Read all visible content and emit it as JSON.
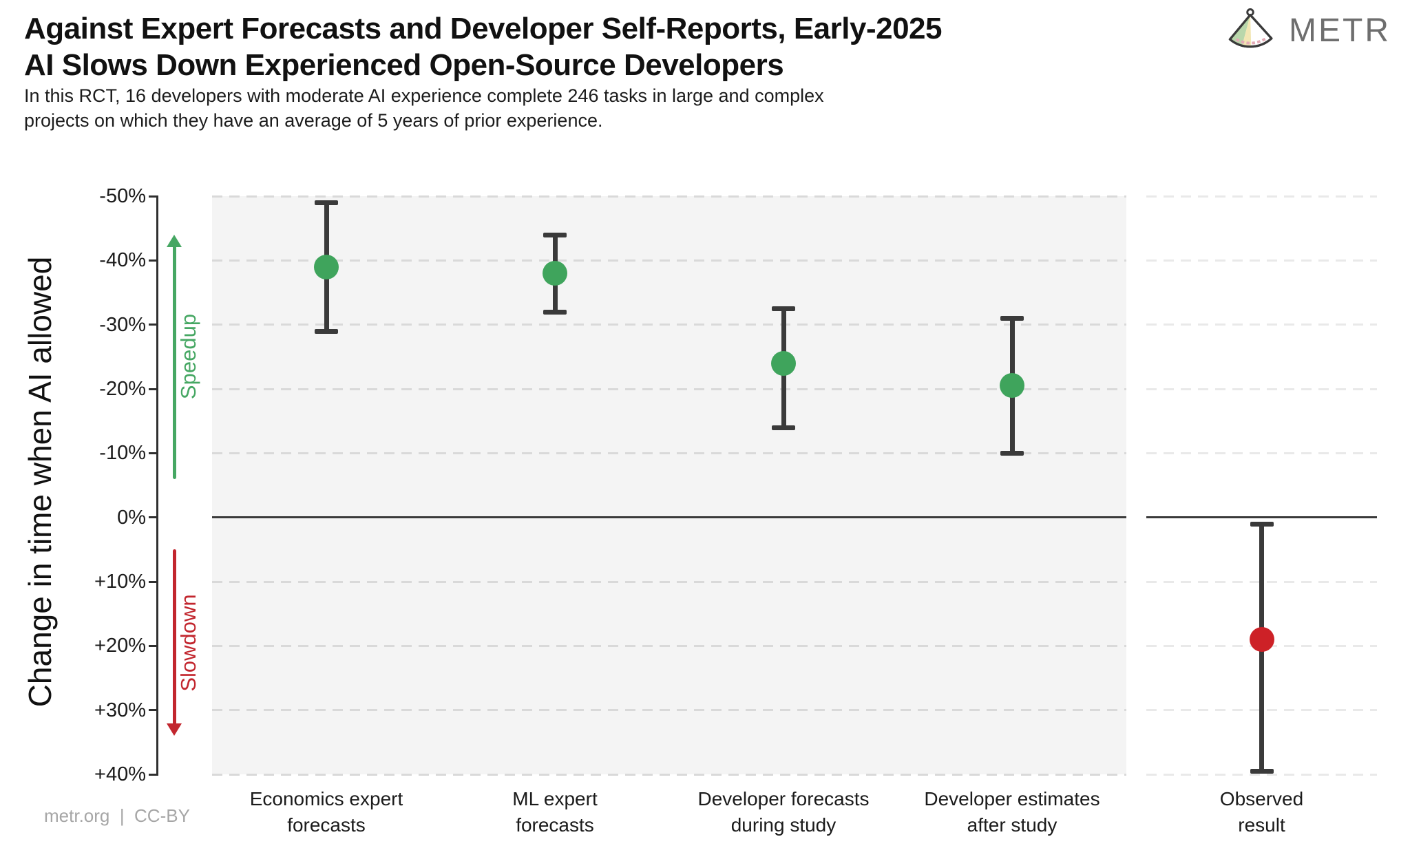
{
  "header": {
    "title_line1": "Against Expert Forecasts and Developer Self-Reports, Early-2025",
    "title_line2": "AI Slows Down Experienced Open-Source Developers",
    "subtitle_line1": "In this RCT, 16 developers with moderate AI experience complete 246 tasks in large and complex",
    "subtitle_line2": "projects on which they have an average of 5 years of prior experience.",
    "logo_text": "METR"
  },
  "footer": {
    "credit": "metr.org  |  CC-BY"
  },
  "colors": {
    "accent_green": "#3fa45c",
    "accent_red": "#cd2127",
    "speedup_green": "#46a763",
    "slowdown_red": "#c2262e",
    "panel_bg": "#f4f4f4",
    "observed_panel_bg": "#ffffff",
    "grid_main": "#d9d9d9",
    "grid_observed": "#e9e9e9",
    "axis": "#2f2f2f",
    "errorbar": "#3a3a3a",
    "zero_line": "#3a3a3a"
  },
  "chart_data": {
    "type": "scatter",
    "title": "Against Expert Forecasts and Developer Self-Reports, Early-2025 AI Slows Down Experienced Open-Source Developers",
    "subtitle": "In this RCT, 16 developers with moderate AI experience complete 246 tasks in large and complex projects on which they have an average of 5 years of prior experience.",
    "ylabel": "Change in time when AI allowed",
    "xlabel": "",
    "ylim": [
      -50,
      40
    ],
    "y_axis_inverted_note": "negative values (speedup) plotted at top, positive (slowdown) at bottom",
    "grid": "horizontal dashed lines every 10%",
    "legend": "none",
    "ytick_values": [
      -50,
      -40,
      -30,
      -20,
      -10,
      0,
      10,
      20,
      30,
      40
    ],
    "ytick_labels": [
      "-50%",
      "-40%",
      "-30%",
      "-20%",
      "-10%",
      "0%",
      "+10%",
      "+20%",
      "+30%",
      "+40%"
    ],
    "zero_reference_line": 0,
    "annotations": {
      "speedup": {
        "label": "Speedup",
        "direction": "up",
        "from": -6,
        "to": -44,
        "color": "#46a763"
      },
      "slowdown": {
        "label": "Slowdown",
        "direction": "down",
        "from": 5,
        "to": 34,
        "color": "#c2262e"
      }
    },
    "series": [
      {
        "category": "Economics expert\nforecasts",
        "value": -39,
        "ci": [
          -49,
          -29
        ],
        "color": "#3fa45c",
        "panel": "main"
      },
      {
        "category": "ML expert\nforecasts",
        "value": -38,
        "ci": [
          -44,
          -32
        ],
        "color": "#3fa45c",
        "panel": "main"
      },
      {
        "category": "Developer forecasts\nduring study",
        "value": -24,
        "ci": [
          -32.5,
          -14
        ],
        "color": "#3fa45c",
        "panel": "main"
      },
      {
        "category": "Developer estimates\nafter study",
        "value": -20.5,
        "ci": [
          -31,
          -10
        ],
        "color": "#3fa45c",
        "panel": "main"
      },
      {
        "category": "Observed\nresult",
        "value": 19,
        "ci": [
          1,
          39.5
        ],
        "color": "#cd2127",
        "panel": "observed"
      }
    ]
  }
}
